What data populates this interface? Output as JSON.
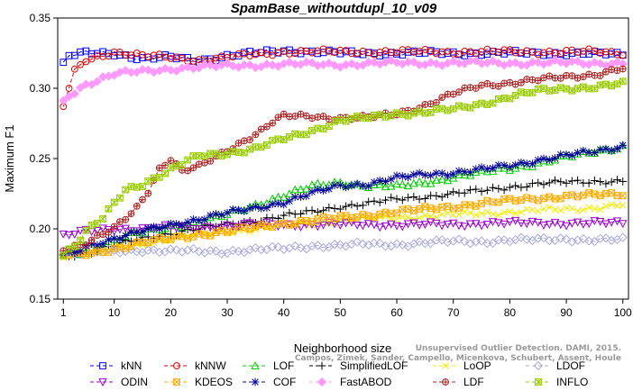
{
  "chart_data": {
    "type": "line",
    "title": "SpamBase_withoutdupl_10_v09",
    "xlabel": "Neighborhood size",
    "ylabel": "Maximum F1",
    "xlim": [
      0,
      101
    ],
    "ylim": [
      0.15,
      0.35
    ],
    "xticks": [
      1,
      10,
      20,
      30,
      40,
      50,
      60,
      70,
      80,
      90,
      100
    ],
    "yticks": [
      0.15,
      0.2,
      0.25,
      0.3,
      0.35
    ],
    "ytick_labels": [
      "0.15",
      "0.20",
      "0.25",
      "0.30",
      "0.35"
    ],
    "grid": false,
    "legend_position": "bottom",
    "series": [
      {
        "name": "kNN",
        "color": "#0000ff",
        "marker": "square",
        "keypoints": [
          [
            1,
            0.317
          ],
          [
            2,
            0.323
          ],
          [
            5,
            0.325
          ],
          [
            10,
            0.325
          ],
          [
            15,
            0.321
          ],
          [
            20,
            0.322
          ],
          [
            25,
            0.32
          ],
          [
            30,
            0.323
          ],
          [
            35,
            0.325
          ],
          [
            40,
            0.327
          ],
          [
            50,
            0.325
          ],
          [
            60,
            0.325
          ],
          [
            70,
            0.325
          ],
          [
            80,
            0.325
          ],
          [
            90,
            0.325
          ],
          [
            100,
            0.324
          ]
        ]
      },
      {
        "name": "kNNW",
        "color": "#dd0000",
        "marker": "circle",
        "keypoints": [
          [
            1,
            0.287
          ],
          [
            2,
            0.3
          ],
          [
            3,
            0.312
          ],
          [
            5,
            0.32
          ],
          [
            10,
            0.326
          ],
          [
            15,
            0.323
          ],
          [
            20,
            0.322
          ],
          [
            25,
            0.32
          ],
          [
            30,
            0.322
          ],
          [
            40,
            0.326
          ],
          [
            50,
            0.326
          ],
          [
            60,
            0.326
          ],
          [
            70,
            0.326
          ],
          [
            80,
            0.326
          ],
          [
            90,
            0.326
          ],
          [
            95,
            0.326
          ],
          [
            100,
            0.325
          ]
        ]
      },
      {
        "name": "LOF",
        "color": "#00cc00",
        "marker": "triangle-up",
        "keypoints": [
          [
            1,
            0.181
          ],
          [
            5,
            0.184
          ],
          [
            10,
            0.192
          ],
          [
            15,
            0.198
          ],
          [
            20,
            0.202
          ],
          [
            25,
            0.205
          ],
          [
            30,
            0.21
          ],
          [
            35,
            0.217
          ],
          [
            40,
            0.224
          ],
          [
            45,
            0.23
          ],
          [
            50,
            0.233
          ],
          [
            55,
            0.231
          ],
          [
            60,
            0.23
          ],
          [
            65,
            0.233
          ],
          [
            70,
            0.237
          ],
          [
            75,
            0.24
          ],
          [
            80,
            0.243
          ],
          [
            85,
            0.247
          ],
          [
            90,
            0.251
          ],
          [
            95,
            0.255
          ],
          [
            100,
            0.259
          ]
        ]
      },
      {
        "name": "SimplifiedLOF",
        "color": "#000000",
        "marker": "plus",
        "keypoints": [
          [
            1,
            0.181
          ],
          [
            5,
            0.183
          ],
          [
            10,
            0.188
          ],
          [
            15,
            0.193
          ],
          [
            20,
            0.197
          ],
          [
            25,
            0.2
          ],
          [
            30,
            0.203
          ],
          [
            35,
            0.206
          ],
          [
            40,
            0.209
          ],
          [
            45,
            0.212
          ],
          [
            50,
            0.216
          ],
          [
            55,
            0.218
          ],
          [
            60,
            0.221
          ],
          [
            65,
            0.223
          ],
          [
            70,
            0.225
          ],
          [
            75,
            0.227
          ],
          [
            80,
            0.23
          ],
          [
            85,
            0.232
          ],
          [
            90,
            0.233
          ],
          [
            95,
            0.234
          ],
          [
            100,
            0.234
          ]
        ]
      },
      {
        "name": "LoOP",
        "color": "#eeee00",
        "marker": "x",
        "keypoints": [
          [
            1,
            0.181
          ],
          [
            5,
            0.183
          ],
          [
            10,
            0.186
          ],
          [
            15,
            0.189
          ],
          [
            20,
            0.193
          ],
          [
            25,
            0.196
          ],
          [
            30,
            0.198
          ],
          [
            35,
            0.2
          ],
          [
            40,
            0.202
          ],
          [
            45,
            0.204
          ],
          [
            50,
            0.206
          ],
          [
            55,
            0.207
          ],
          [
            60,
            0.208
          ],
          [
            65,
            0.209
          ],
          [
            70,
            0.21
          ],
          [
            75,
            0.211
          ],
          [
            80,
            0.212
          ],
          [
            85,
            0.213
          ],
          [
            90,
            0.214
          ],
          [
            95,
            0.215
          ],
          [
            100,
            0.217
          ]
        ]
      },
      {
        "name": "LDOF",
        "color": "#aaaadd",
        "marker": "diamond",
        "keypoints": [
          [
            1,
            0.182
          ],
          [
            5,
            0.183
          ],
          [
            10,
            0.184
          ],
          [
            15,
            0.185
          ],
          [
            20,
            0.184
          ],
          [
            25,
            0.184
          ],
          [
            30,
            0.184
          ],
          [
            35,
            0.185
          ],
          [
            40,
            0.186
          ],
          [
            45,
            0.188
          ],
          [
            50,
            0.188
          ],
          [
            55,
            0.189
          ],
          [
            60,
            0.189
          ],
          [
            65,
            0.19
          ],
          [
            70,
            0.191
          ],
          [
            75,
            0.191
          ],
          [
            80,
            0.192
          ],
          [
            85,
            0.192
          ],
          [
            90,
            0.193
          ],
          [
            95,
            0.192
          ],
          [
            100,
            0.192
          ]
        ]
      },
      {
        "name": "ODIN",
        "color": "#9900cc",
        "marker": "triangle-down",
        "keypoints": [
          [
            1,
            0.195
          ],
          [
            5,
            0.198
          ],
          [
            10,
            0.2
          ],
          [
            15,
            0.2
          ],
          [
            20,
            0.201
          ],
          [
            25,
            0.201
          ],
          [
            30,
            0.202
          ],
          [
            35,
            0.203
          ],
          [
            40,
            0.203
          ],
          [
            45,
            0.203
          ],
          [
            50,
            0.203
          ],
          [
            55,
            0.203
          ],
          [
            60,
            0.203
          ],
          [
            65,
            0.203
          ],
          [
            70,
            0.203
          ],
          [
            75,
            0.204
          ],
          [
            80,
            0.204
          ],
          [
            85,
            0.204
          ],
          [
            90,
            0.204
          ],
          [
            95,
            0.204
          ],
          [
            100,
            0.204
          ]
        ]
      },
      {
        "name": "KDEOS",
        "color": "#ffaa00",
        "marker": "box-x",
        "keypoints": [
          [
            1,
            0.181
          ],
          [
            5,
            0.182
          ],
          [
            10,
            0.186
          ],
          [
            15,
            0.19
          ],
          [
            20,
            0.193
          ],
          [
            25,
            0.196
          ],
          [
            30,
            0.198
          ],
          [
            35,
            0.201
          ],
          [
            40,
            0.204
          ],
          [
            45,
            0.206
          ],
          [
            50,
            0.208
          ],
          [
            55,
            0.21
          ],
          [
            60,
            0.212
          ],
          [
            65,
            0.214
          ],
          [
            70,
            0.216
          ],
          [
            75,
            0.218
          ],
          [
            80,
            0.22
          ],
          [
            85,
            0.222
          ],
          [
            90,
            0.223
          ],
          [
            95,
            0.224
          ],
          [
            100,
            0.225
          ]
        ]
      },
      {
        "name": "COF",
        "color": "#000099",
        "marker": "asterisk",
        "keypoints": [
          [
            1,
            0.181
          ],
          [
            3,
            0.183
          ],
          [
            5,
            0.188
          ],
          [
            10,
            0.193
          ],
          [
            15,
            0.198
          ],
          [
            20,
            0.203
          ],
          [
            25,
            0.207
          ],
          [
            30,
            0.211
          ],
          [
            35,
            0.215
          ],
          [
            40,
            0.219
          ],
          [
            45,
            0.225
          ],
          [
            50,
            0.231
          ],
          [
            55,
            0.232
          ],
          [
            60,
            0.236
          ],
          [
            65,
            0.239
          ],
          [
            70,
            0.24
          ],
          [
            75,
            0.242
          ],
          [
            80,
            0.245
          ],
          [
            85,
            0.249
          ],
          [
            90,
            0.252
          ],
          [
            95,
            0.255
          ],
          [
            100,
            0.259
          ]
        ]
      },
      {
        "name": "FastABOD",
        "color": "#ff99ff",
        "marker": "diamond-filled",
        "keypoints": [
          [
            1,
            0.29
          ],
          [
            2,
            0.295
          ],
          [
            5,
            0.303
          ],
          [
            10,
            0.31
          ],
          [
            15,
            0.312
          ],
          [
            20,
            0.314
          ],
          [
            25,
            0.315
          ],
          [
            30,
            0.316
          ],
          [
            40,
            0.317
          ],
          [
            50,
            0.317
          ],
          [
            60,
            0.318
          ],
          [
            70,
            0.318
          ],
          [
            80,
            0.318
          ],
          [
            90,
            0.318
          ],
          [
            100,
            0.318
          ]
        ]
      },
      {
        "name": "LDF",
        "color": "#aa2222",
        "marker": "circle-plus",
        "keypoints": [
          [
            1,
            0.186
          ],
          [
            5,
            0.19
          ],
          [
            8,
            0.196
          ],
          [
            10,
            0.2
          ],
          [
            12,
            0.207
          ],
          [
            14,
            0.215
          ],
          [
            16,
            0.227
          ],
          [
            18,
            0.243
          ],
          [
            20,
            0.25
          ],
          [
            22,
            0.241
          ],
          [
            25,
            0.244
          ],
          [
            28,
            0.251
          ],
          [
            30,
            0.256
          ],
          [
            33,
            0.263
          ],
          [
            36,
            0.27
          ],
          [
            38,
            0.276
          ],
          [
            40,
            0.28
          ],
          [
            45,
            0.28
          ],
          [
            50,
            0.279
          ],
          [
            55,
            0.279
          ],
          [
            60,
            0.282
          ],
          [
            65,
            0.288
          ],
          [
            70,
            0.296
          ],
          [
            75,
            0.302
          ],
          [
            80,
            0.304
          ],
          [
            85,
            0.306
          ],
          [
            90,
            0.308
          ],
          [
            95,
            0.31
          ],
          [
            100,
            0.314
          ]
        ]
      },
      {
        "name": "INFLO",
        "color": "#99cc00",
        "marker": "box-star",
        "keypoints": [
          [
            1,
            0.182
          ],
          [
            3,
            0.188
          ],
          [
            5,
            0.198
          ],
          [
            8,
            0.207
          ],
          [
            10,
            0.218
          ],
          [
            12,
            0.228
          ],
          [
            15,
            0.232
          ],
          [
            18,
            0.238
          ],
          [
            20,
            0.242
          ],
          [
            22,
            0.246
          ],
          [
            25,
            0.252
          ],
          [
            30,
            0.254
          ],
          [
            35,
            0.257
          ],
          [
            40,
            0.264
          ],
          [
            45,
            0.27
          ],
          [
            50,
            0.277
          ],
          [
            55,
            0.279
          ],
          [
            60,
            0.282
          ],
          [
            65,
            0.283
          ],
          [
            70,
            0.285
          ],
          [
            75,
            0.289
          ],
          [
            80,
            0.294
          ],
          [
            85,
            0.298
          ],
          [
            90,
            0.3
          ],
          [
            95,
            0.301
          ],
          [
            100,
            0.303
          ]
        ]
      }
    ],
    "legend": [
      {
        "name": "kNN",
        "row": 0,
        "col": 0
      },
      {
        "name": "kNNW",
        "row": 0,
        "col": 1
      },
      {
        "name": "LOF",
        "row": 0,
        "col": 2
      },
      {
        "name": "SimplifiedLOF",
        "row": 0,
        "col": 3
      },
      {
        "name": "LoOP",
        "row": 0,
        "col": 4
      },
      {
        "name": "LDOF",
        "row": 0,
        "col": 5
      },
      {
        "name": "ODIN",
        "row": 1,
        "col": 0
      },
      {
        "name": "KDEOS",
        "row": 1,
        "col": 1
      },
      {
        "name": "COF",
        "row": 1,
        "col": 2
      },
      {
        "name": "FastABOD",
        "row": 1,
        "col": 3
      },
      {
        "name": "LDF",
        "row": 1,
        "col": 4
      },
      {
        "name": "INFLO",
        "row": 1,
        "col": 5
      }
    ],
    "watermark": [
      "Unsupervised Outlier Detection. DAMI, 2015.",
      "Campos, Zimek, Sander, Campello, Micenkova, Schubert, Assent, Houle"
    ]
  }
}
